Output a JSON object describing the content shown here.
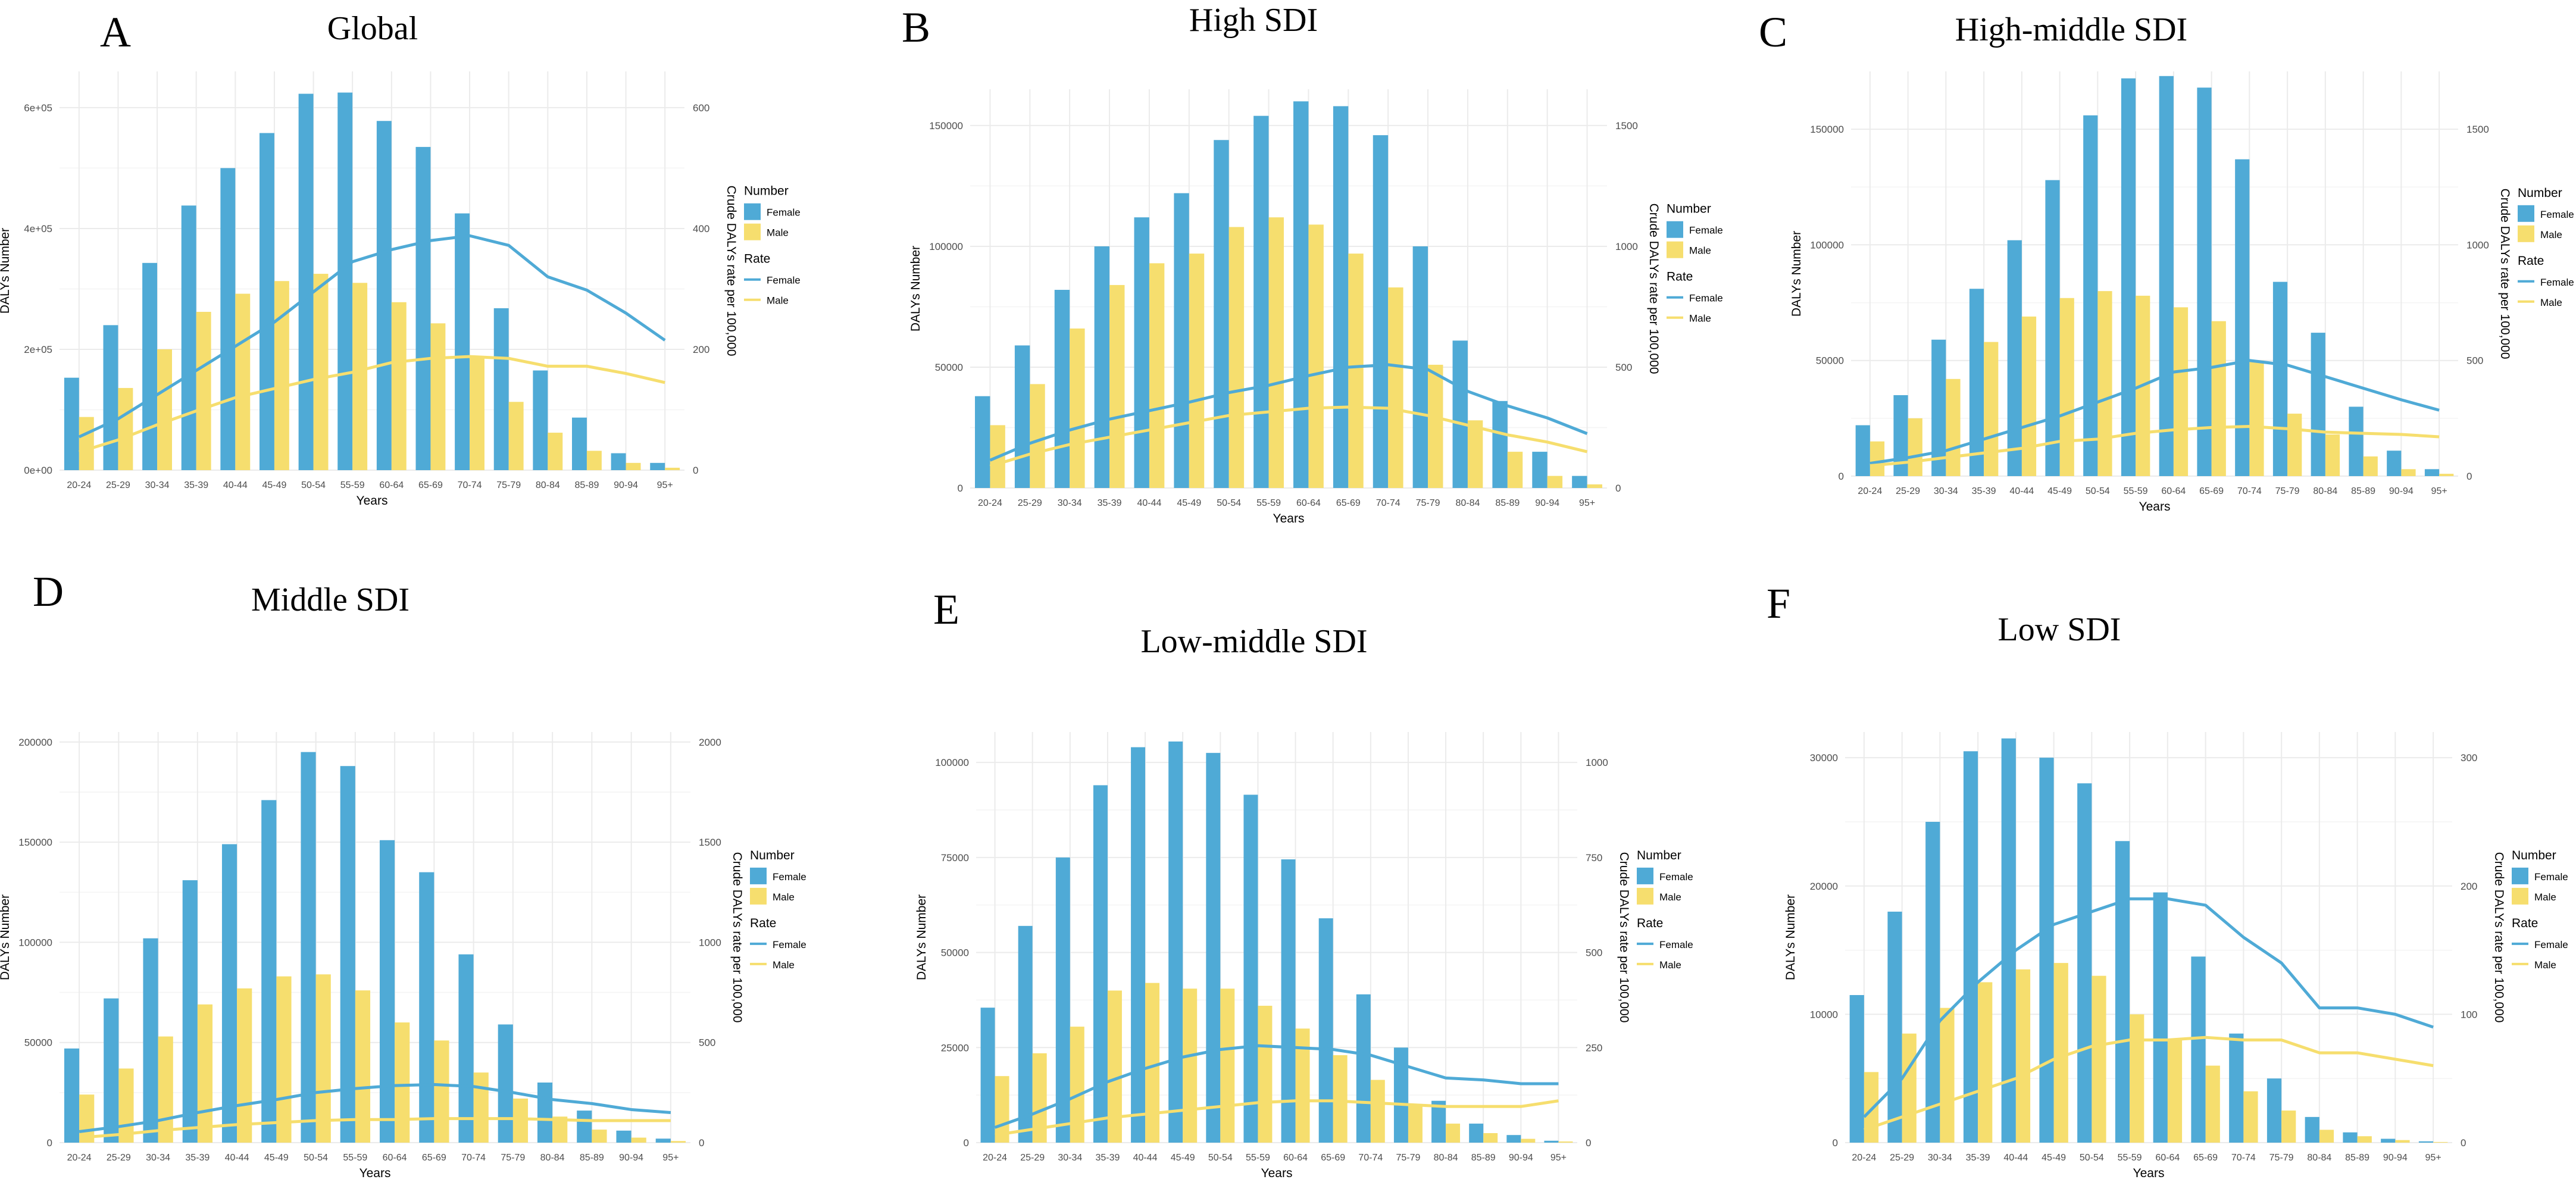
{
  "colors": {
    "female": "#4FAAD6",
    "male": "#F6DE6E",
    "grid": "#EBEBEB",
    "axis_text": "#4D4D4D"
  },
  "chart_data": [
    {
      "type": "bar",
      "letter": "A",
      "title": "Global",
      "xlabel": "Years",
      "ylabel": "DALYs Number",
      "y2label": "Crude DALYs rate per 100,000",
      "categories": [
        "20-24",
        "25-29",
        "30-34",
        "35-39",
        "40-44",
        "45-49",
        "50-54",
        "55-59",
        "60-64",
        "65-69",
        "70-74",
        "75-79",
        "80-84",
        "85-89",
        "90-94",
        "95+"
      ],
      "ylim": [
        0,
        660000
      ],
      "yticks": [
        0,
        200000,
        400000,
        600000
      ],
      "ytick_labels": [
        "0e+00",
        "2e+05",
        "4e+05",
        "6e+05"
      ],
      "y2lim": [
        0,
        660
      ],
      "y2ticks": [
        0,
        200,
        400,
        600
      ],
      "y2tick_labels": [
        "0",
        "200",
        "400",
        "600"
      ],
      "series": [
        {
          "name": "Female",
          "kind": "bar",
          "axis": "left",
          "values": [
            153000,
            240000,
            343000,
            438000,
            500000,
            558000,
            623000,
            625000,
            578000,
            535000,
            425000,
            268000,
            165000,
            87000,
            28000,
            12000
          ]
        },
        {
          "name": "Male",
          "kind": "bar",
          "axis": "left",
          "values": [
            88000,
            136000,
            200000,
            262000,
            292000,
            313000,
            325000,
            310000,
            278000,
            243000,
            188000,
            113000,
            62000,
            32000,
            12000,
            4000
          ]
        },
        {
          "name": "Female",
          "kind": "line",
          "axis": "right",
          "values": [
            55,
            85,
            125,
            165,
            205,
            245,
            295,
            345,
            365,
            380,
            388,
            372,
            320,
            298,
            260,
            215
          ]
        },
        {
          "name": "Male",
          "kind": "line",
          "axis": "right",
          "values": [
            30,
            50,
            75,
            98,
            120,
            135,
            150,
            162,
            178,
            185,
            188,
            185,
            172,
            172,
            160,
            145
          ]
        }
      ],
      "legend": {
        "number_title": "Number",
        "rate_title": "Rate",
        "number_items": [
          "Female",
          "Male"
        ],
        "rate_items": [
          "Female",
          "Male"
        ],
        "position": "right"
      }
    },
    {
      "type": "bar",
      "letter": "B",
      "title": "High SDI",
      "xlabel": "Years",
      "ylabel": "DALYs Number",
      "y2label": "Crude DALYs rate per 100,000",
      "categories": [
        "20-24",
        "25-29",
        "30-34",
        "35-39",
        "40-44",
        "45-49",
        "50-54",
        "55-59",
        "60-64",
        "65-69",
        "70-74",
        "75-79",
        "80-84",
        "85-89",
        "90-94",
        "95+"
      ],
      "ylim": [
        0,
        165000
      ],
      "yticks": [
        0,
        50000,
        100000,
        150000
      ],
      "ytick_labels": [
        "0",
        "50000",
        "100000",
        "150000"
      ],
      "y2lim": [
        0,
        1650
      ],
      "y2ticks": [
        0,
        500,
        1000,
        1500
      ],
      "y2tick_labels": [
        "0",
        "500",
        "1000",
        "1500"
      ],
      "series": [
        {
          "name": "Female",
          "kind": "bar",
          "axis": "left",
          "values": [
            38000,
            59000,
            82000,
            100000,
            112000,
            122000,
            144000,
            154000,
            160000,
            158000,
            146000,
            100000,
            61000,
            36000,
            15000,
            5000
          ]
        },
        {
          "name": "Male",
          "kind": "bar",
          "axis": "left",
          "values": [
            26000,
            43000,
            66000,
            84000,
            93000,
            97000,
            108000,
            112000,
            109000,
            97000,
            83000,
            51000,
            28000,
            15000,
            5000,
            1500
          ]
        },
        {
          "name": "Female",
          "kind": "line",
          "axis": "right",
          "values": [
            115,
            185,
            240,
            285,
            320,
            355,
            395,
            425,
            465,
            500,
            510,
            490,
            400,
            340,
            290,
            225
          ]
        },
        {
          "name": "Male",
          "kind": "line",
          "axis": "right",
          "values": [
            90,
            140,
            180,
            210,
            240,
            270,
            300,
            315,
            330,
            335,
            330,
            300,
            260,
            220,
            190,
            150
          ]
        }
      ],
      "legend": {
        "number_title": "Number",
        "rate_title": "Rate",
        "number_items": [
          "Female",
          "Male"
        ],
        "rate_items": [
          "Female",
          "Male"
        ],
        "position": "right"
      }
    },
    {
      "type": "bar",
      "letter": "C",
      "title": "High-middle SDI",
      "xlabel": "Years",
      "ylabel": "DALYs Number",
      "y2label": "Crude DALYs rate per 100,000",
      "categories": [
        "20-24",
        "25-29",
        "30-34",
        "35-39",
        "40-44",
        "45-49",
        "50-54",
        "55-59",
        "60-64",
        "65-69",
        "70-74",
        "75-79",
        "80-84",
        "85-89",
        "90-94",
        "95+"
      ],
      "ylim": [
        0,
        175000
      ],
      "yticks": [
        0,
        50000,
        100000,
        150000
      ],
      "ytick_labels": [
        "0",
        "50000",
        "100000",
        "150000"
      ],
      "y2lim": [
        0,
        1750
      ],
      "y2ticks": [
        0,
        500,
        1000,
        1500
      ],
      "y2tick_labels": [
        "0",
        "500",
        "1000",
        "1500"
      ],
      "series": [
        {
          "name": "Female",
          "kind": "bar",
          "axis": "left",
          "values": [
            22000,
            35000,
            59000,
            81000,
            102000,
            128000,
            156000,
            172000,
            173000,
            168000,
            137000,
            84000,
            62000,
            30000,
            11000,
            3000
          ]
        },
        {
          "name": "Male",
          "kind": "bar",
          "axis": "left",
          "values": [
            15000,
            25000,
            42000,
            58000,
            69000,
            77000,
            80000,
            78000,
            73000,
            67000,
            50000,
            27000,
            18000,
            8500,
            3000,
            1000
          ]
        },
        {
          "name": "Female",
          "kind": "line",
          "axis": "right",
          "values": [
            55,
            80,
            110,
            160,
            210,
            260,
            320,
            380,
            450,
            470,
            500,
            480,
            430,
            380,
            330,
            285
          ]
        },
        {
          "name": "Male",
          "kind": "line",
          "axis": "right",
          "values": [
            45,
            60,
            80,
            100,
            120,
            150,
            160,
            185,
            200,
            210,
            215,
            205,
            190,
            185,
            180,
            170
          ]
        }
      ],
      "legend": {
        "number_title": "Number",
        "rate_title": "Rate",
        "number_items": [
          "Female",
          "Male"
        ],
        "rate_items": [
          "Female",
          "Male"
        ],
        "position": "right"
      }
    },
    {
      "type": "bar",
      "letter": "D",
      "title": "Middle SDI",
      "xlabel": "Years",
      "ylabel": "DALYs Number",
      "y2label": "Crude DALYs rate per 100,000",
      "categories": [
        "20-24",
        "25-29",
        "30-34",
        "35-39",
        "40-44",
        "45-49",
        "50-54",
        "55-59",
        "60-64",
        "65-69",
        "70-74",
        "75-79",
        "80-84",
        "85-89",
        "90-94",
        "95+"
      ],
      "ylim": [
        0,
        205000
      ],
      "yticks": [
        0,
        50000,
        100000,
        150000,
        200000
      ],
      "ytick_labels": [
        "0",
        "50000",
        "100000",
        "150000",
        "200000"
      ],
      "y2lim": [
        0,
        2050
      ],
      "y2ticks": [
        0,
        500,
        1000,
        1500,
        2000
      ],
      "y2tick_labels": [
        "0",
        "500",
        "1000",
        "1500",
        "2000"
      ],
      "series": [
        {
          "name": "Female",
          "kind": "bar",
          "axis": "left",
          "values": [
            47000,
            72000,
            102000,
            131000,
            149000,
            171000,
            195000,
            188000,
            151000,
            135000,
            94000,
            59000,
            30000,
            16000,
            6000,
            2000
          ]
        },
        {
          "name": "Male",
          "kind": "bar",
          "axis": "left",
          "values": [
            24000,
            37000,
            53000,
            69000,
            77000,
            83000,
            84000,
            76000,
            60000,
            51000,
            35000,
            22000,
            13000,
            6500,
            2500,
            800
          ]
        },
        {
          "name": "Female",
          "kind": "line",
          "axis": "right",
          "values": [
            55,
            80,
            110,
            150,
            185,
            215,
            250,
            270,
            285,
            290,
            280,
            250,
            215,
            195,
            165,
            150
          ]
        },
        {
          "name": "Male",
          "kind": "line",
          "axis": "right",
          "values": [
            25,
            40,
            60,
            75,
            90,
            100,
            110,
            115,
            115,
            120,
            120,
            120,
            115,
            110,
            110,
            110
          ]
        }
      ],
      "legend": {
        "number_title": "Number",
        "rate_title": "Rate",
        "number_items": [
          "Female",
          "Male"
        ],
        "rate_items": [
          "Female",
          "Male"
        ],
        "position": "right"
      }
    },
    {
      "type": "bar",
      "letter": "E",
      "title": "Low-middle SDI",
      "xlabel": "Years",
      "ylabel": "DALYs Number",
      "y2label": "Crude DALYs rate per 100,000",
      "categories": [
        "20-24",
        "25-29",
        "30-34",
        "35-39",
        "40-44",
        "45-49",
        "50-54",
        "55-59",
        "60-64",
        "65-69",
        "70-74",
        "75-79",
        "80-84",
        "85-89",
        "90-94",
        "95+"
      ],
      "ylim": [
        0,
        108000
      ],
      "yticks": [
        0,
        25000,
        50000,
        75000,
        100000
      ],
      "ytick_labels": [
        "0",
        "25000",
        "50000",
        "75000",
        "100000"
      ],
      "y2lim": [
        0,
        1080
      ],
      "y2ticks": [
        0,
        250,
        500,
        750,
        1000
      ],
      "y2tick_labels": [
        "0",
        "250",
        "500",
        "750",
        "1000"
      ],
      "series": [
        {
          "name": "Female",
          "kind": "bar",
          "axis": "left",
          "values": [
            35500,
            57000,
            75000,
            94000,
            104000,
            105500,
            102500,
            91500,
            74500,
            59000,
            39000,
            25000,
            11000,
            5000,
            2000,
            500
          ]
        },
        {
          "name": "Male",
          "kind": "bar",
          "axis": "left",
          "values": [
            17500,
            23500,
            30500,
            40000,
            42000,
            40500,
            40500,
            36000,
            30000,
            23000,
            16500,
            10000,
            5000,
            2500,
            1000,
            300
          ]
        },
        {
          "name": "Female",
          "kind": "line",
          "axis": "right",
          "values": [
            40,
            75,
            115,
            160,
            195,
            225,
            245,
            255,
            250,
            245,
            230,
            200,
            170,
            165,
            155,
            155
          ]
        },
        {
          "name": "Male",
          "kind": "line",
          "axis": "right",
          "values": [
            20,
            35,
            50,
            65,
            75,
            85,
            95,
            105,
            110,
            110,
            105,
            100,
            95,
            95,
            95,
            110
          ]
        }
      ],
      "legend": {
        "number_title": "Number",
        "rate_title": "Rate",
        "number_items": [
          "Female",
          "Male"
        ],
        "rate_items": [
          "Female",
          "Male"
        ],
        "position": "right"
      }
    },
    {
      "type": "bar",
      "letter": "F",
      "title": "Low SDI",
      "xlabel": "Years",
      "ylabel": "DALYs Number",
      "y2label": "Crude DALYs rate per 100,000",
      "categories": [
        "20-24",
        "25-29",
        "30-34",
        "35-39",
        "40-44",
        "45-49",
        "50-54",
        "55-59",
        "60-64",
        "65-69",
        "70-74",
        "75-79",
        "80-84",
        "85-89",
        "90-94",
        "95+"
      ],
      "ylim": [
        0,
        32000
      ],
      "yticks": [
        0,
        10000,
        20000,
        30000
      ],
      "ytick_labels": [
        "0",
        "10000",
        "20000",
        "30000"
      ],
      "y2lim": [
        0,
        320
      ],
      "y2ticks": [
        0,
        100,
        200,
        300
      ],
      "y2tick_labels": [
        "0",
        "100",
        "200",
        "300"
      ],
      "series": [
        {
          "name": "Female",
          "kind": "bar",
          "axis": "left",
          "values": [
            11500,
            18000,
            25000,
            30500,
            31500,
            30000,
            28000,
            23500,
            19500,
            14500,
            8500,
            5000,
            2000,
            800,
            300,
            100
          ]
        },
        {
          "name": "Male",
          "kind": "bar",
          "axis": "left",
          "values": [
            5500,
            8500,
            10500,
            12500,
            13500,
            14000,
            13000,
            10000,
            8000,
            6000,
            4000,
            2500,
            1000,
            500,
            200,
            50
          ]
        },
        {
          "name": "Female",
          "kind": "line",
          "axis": "right",
          "values": [
            20,
            50,
            95,
            125,
            150,
            170,
            180,
            190,
            190,
            185,
            160,
            140,
            105,
            105,
            100,
            90
          ]
        },
        {
          "name": "Male",
          "kind": "line",
          "axis": "right",
          "values": [
            10,
            20,
            30,
            40,
            50,
            65,
            75,
            80,
            80,
            82,
            80,
            80,
            70,
            70,
            65,
            60
          ]
        }
      ],
      "legend": {
        "number_title": "Number",
        "rate_title": "Rate",
        "number_items": [
          "Female",
          "Male"
        ],
        "rate_items": [
          "Female",
          "Male"
        ],
        "position": "right"
      }
    }
  ]
}
